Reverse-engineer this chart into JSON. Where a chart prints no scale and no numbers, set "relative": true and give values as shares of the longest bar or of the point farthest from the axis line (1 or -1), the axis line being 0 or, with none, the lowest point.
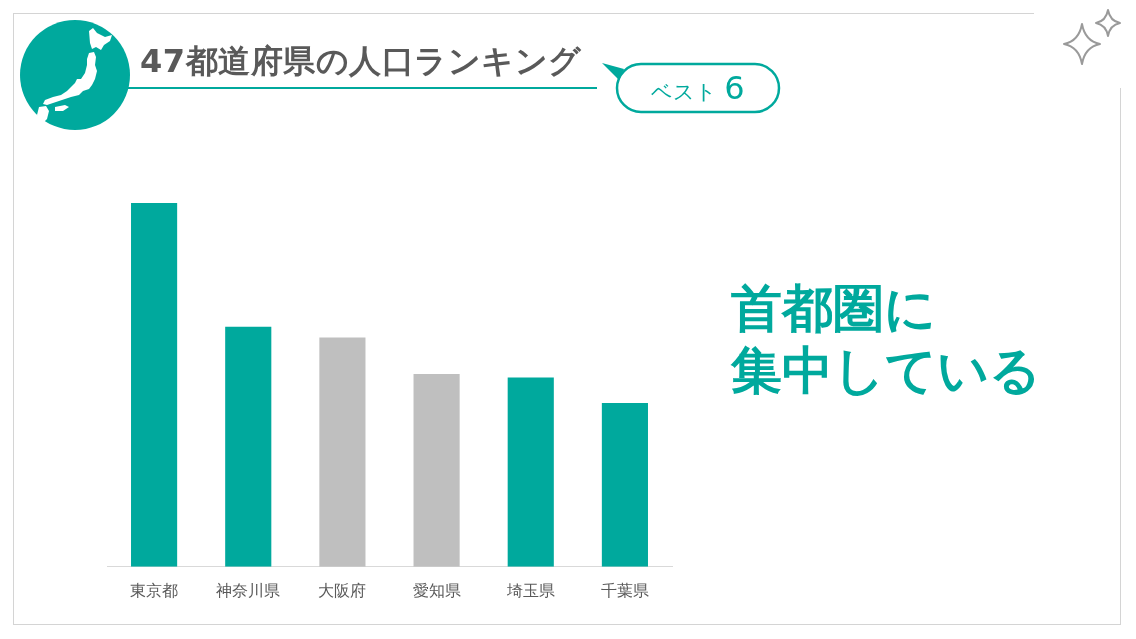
{
  "chart_data": {
    "type": "bar",
    "title": "47都道府県の人口ランキング",
    "subtitle": "ベスト 6",
    "annotations": [
      "首都圏に",
      "集中している"
    ],
    "categories": [
      "東京都",
      "神奈川県",
      "大阪府",
      "愛知県",
      "埼玉県",
      "千葉県"
    ],
    "values": [
      1,
      0.66,
      0.63,
      0.53,
      0.52,
      0.45
    ],
    "colors": [
      "#00a99d",
      "#00a99d",
      "#bfbfbf",
      "#bfbfbf",
      "#00a99d",
      "#00a99d"
    ],
    "relative": true
  }
}
